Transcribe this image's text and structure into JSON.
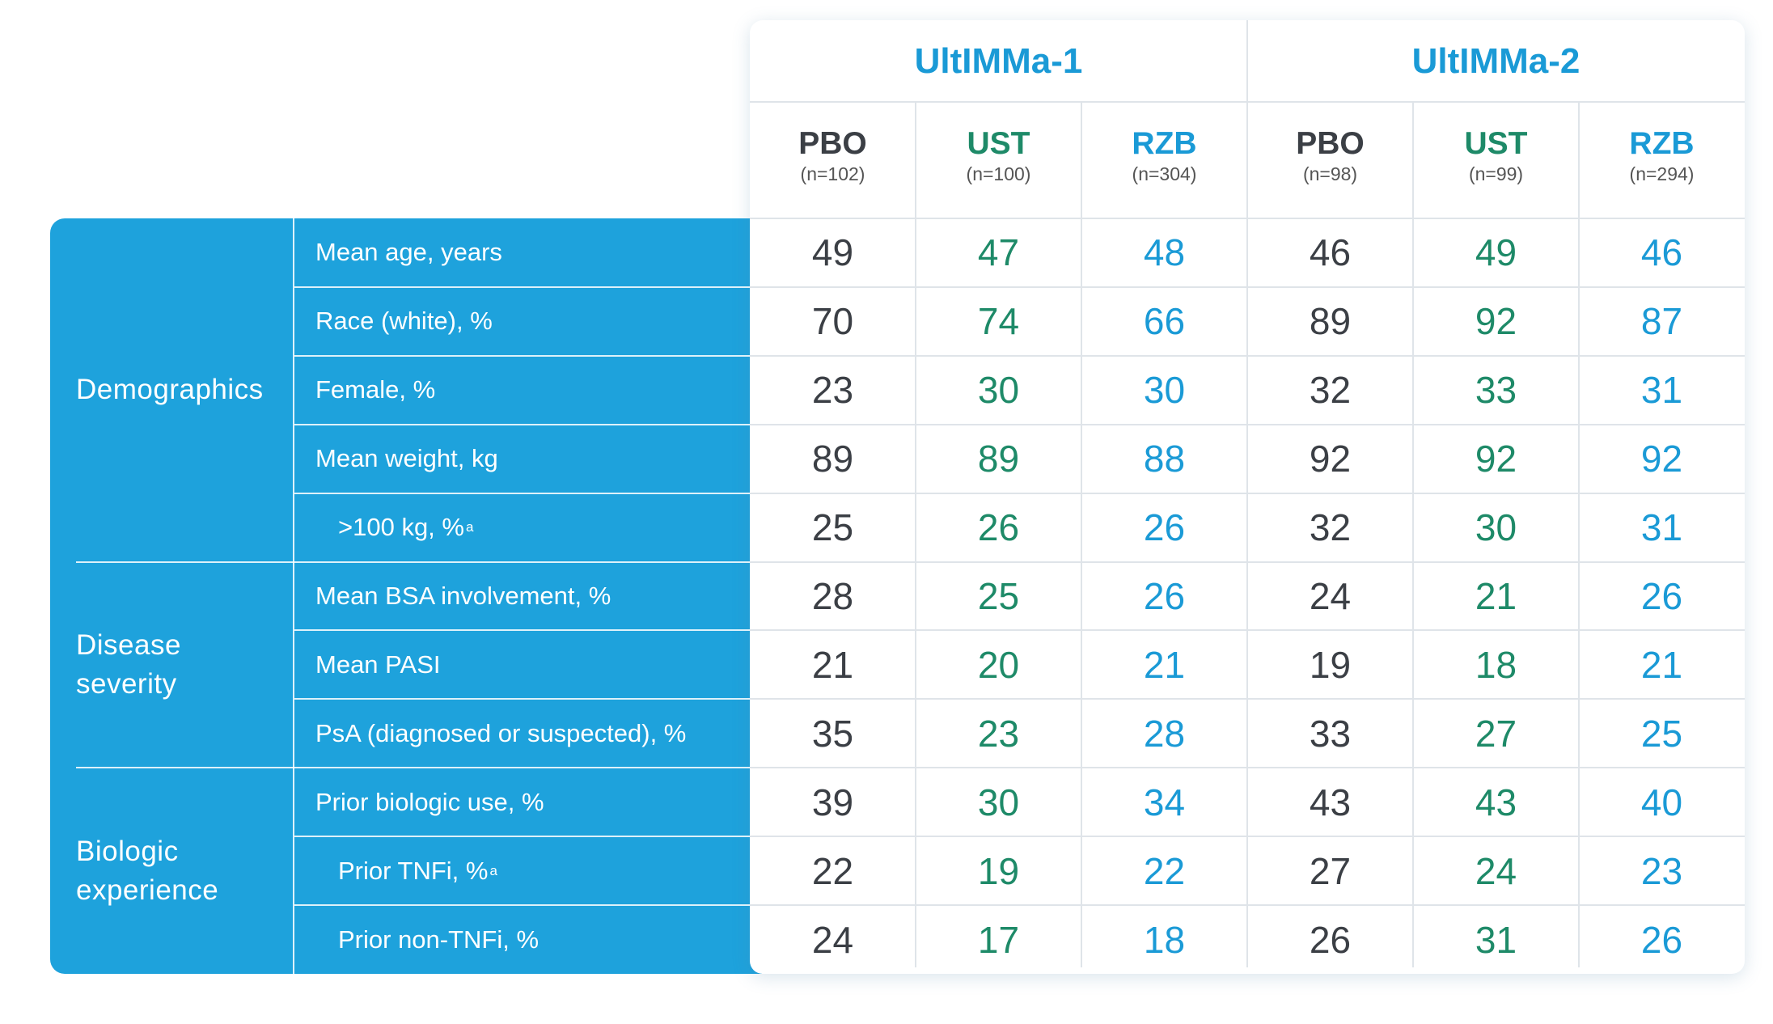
{
  "table": {
    "groups": [
      {
        "title": "UltIMMa-1",
        "color": "#1a9ad6",
        "columns": [
          {
            "arm": "PBO",
            "n": "(n=102)",
            "color": "#3b3f45"
          },
          {
            "arm": "UST",
            "n": "(n=100)",
            "color": "#1e8a68"
          },
          {
            "arm": "RZB",
            "n": "(n=304)",
            "color": "#1a9ad6"
          }
        ]
      },
      {
        "title": "UltIMMa-2",
        "color": "#1a9ad6",
        "columns": [
          {
            "arm": "PBO",
            "n": "(n=98)",
            "color": "#3b3f45"
          },
          {
            "arm": "UST",
            "n": "(n=99)",
            "color": "#1e8a68"
          },
          {
            "arm": "RZB",
            "n": "(n=294)",
            "color": "#1a9ad6"
          }
        ]
      }
    ],
    "sections": [
      {
        "label": [
          "Demographics"
        ],
        "rows": [
          {
            "label": "Mean age, years",
            "values": [
              49,
              47,
              48,
              46,
              49,
              46
            ]
          },
          {
            "label": "Race (white), %",
            "values": [
              70,
              74,
              66,
              89,
              92,
              87
            ]
          },
          {
            "label": "Female, %",
            "values": [
              23,
              30,
              30,
              32,
              33,
              31
            ]
          },
          {
            "label": "Mean weight, kg",
            "values": [
              89,
              89,
              88,
              92,
              92,
              92
            ]
          },
          {
            "label": ">100 kg, %",
            "footnote": "a",
            "indent": 1,
            "values": [
              25,
              26,
              26,
              32,
              30,
              31
            ]
          }
        ]
      },
      {
        "label": [
          "Disease",
          "severity"
        ],
        "rows": [
          {
            "label": "Mean BSA involvement, %",
            "values": [
              28,
              25,
              26,
              24,
              21,
              26
            ]
          },
          {
            "label": "Mean PASI",
            "values": [
              21,
              20,
              21,
              19,
              18,
              21
            ]
          },
          {
            "label": "PsA (diagnosed or suspected), %",
            "values": [
              35,
              23,
              28,
              33,
              27,
              25
            ]
          }
        ]
      },
      {
        "label": [
          "Biologic",
          "experience"
        ],
        "rows": [
          {
            "label": "Prior biologic use, %",
            "values": [
              39,
              30,
              34,
              43,
              43,
              40
            ]
          },
          {
            "label": "Prior TNFi, %",
            "footnote": "a",
            "indent": 1,
            "values": [
              22,
              19,
              22,
              27,
              24,
              23
            ]
          },
          {
            "label": "Prior non-TNFi, %",
            "indent": 1,
            "values": [
              24,
              17,
              18,
              26,
              31,
              26
            ]
          }
        ]
      }
    ]
  }
}
